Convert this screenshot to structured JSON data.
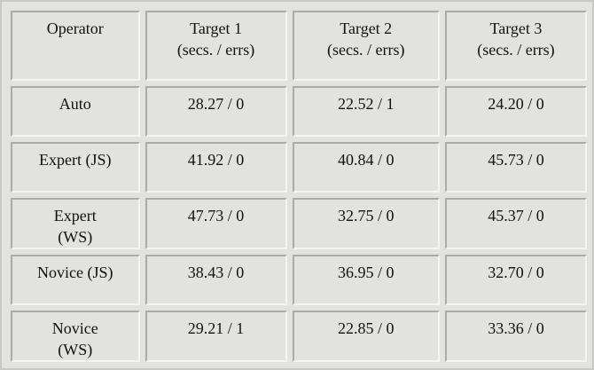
{
  "header": {
    "operator": "Operator",
    "targets": [
      {
        "title": "Target 1",
        "units": "(secs. / errs)"
      },
      {
        "title": "Target 2",
        "units": "(secs. / errs)"
      },
      {
        "title": "Target 3",
        "units": "(secs. / errs)"
      }
    ]
  },
  "rows": [
    {
      "operator_lines": [
        "Auto"
      ],
      "values": [
        "28.27 / 0",
        "22.52 / 1",
        "24.20 / 0"
      ]
    },
    {
      "operator_lines": [
        "Expert (JS)"
      ],
      "values": [
        "41.92 / 0",
        "40.84 / 0",
        "45.73 / 0"
      ]
    },
    {
      "operator_lines": [
        "Expert",
        "(WS)"
      ],
      "values": [
        "47.73 / 0",
        "32.75 / 0",
        "45.37 / 0"
      ]
    },
    {
      "operator_lines": [
        "Novice (JS)"
      ],
      "values": [
        "38.43 / 0",
        "36.95 / 0",
        "32.70 / 0"
      ]
    },
    {
      "operator_lines": [
        "Novice",
        "(WS)"
      ],
      "values": [
        "29.21 / 1",
        "22.85 / 0",
        "33.36 / 0"
      ]
    }
  ]
}
